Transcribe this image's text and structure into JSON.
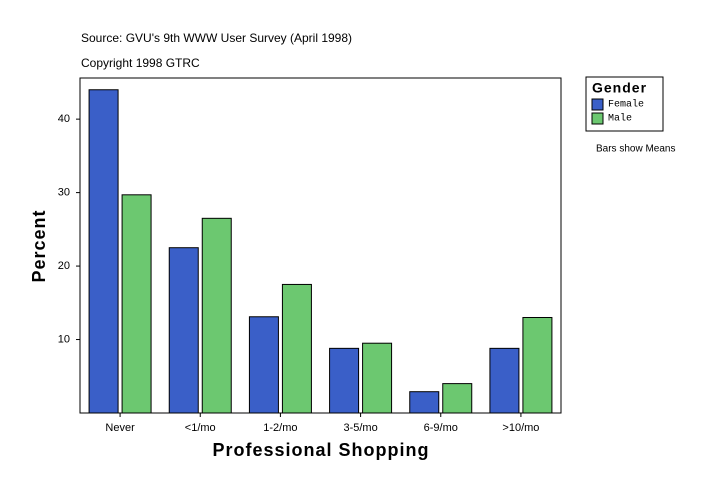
{
  "chart_data": {
    "type": "bar",
    "source": "Source: GVU's 9th WWW User Survey (April 1998)",
    "copyright": "Copyright 1998 GTRC",
    "x_label": "Professional Shopping",
    "y_label": "Percent",
    "legend_title": "Gender",
    "note": "Bars show Means",
    "categories": [
      "Never",
      "<1/mo",
      "1-2/mo",
      "3-5/mo",
      "6-9/mo",
      ">10/mo"
    ],
    "series": [
      {
        "name": "Female",
        "color": "#3a5fc8",
        "values": [
          44.0,
          22.5,
          13.1,
          8.8,
          2.9,
          8.8
        ]
      },
      {
        "name": "Male",
        "color": "#6cc870",
        "values": [
          29.7,
          26.5,
          17.5,
          9.5,
          4.0,
          13.0
        ]
      }
    ],
    "ylim": [
      0,
      45.6
    ],
    "yticks": [
      10,
      20,
      30,
      40
    ]
  }
}
